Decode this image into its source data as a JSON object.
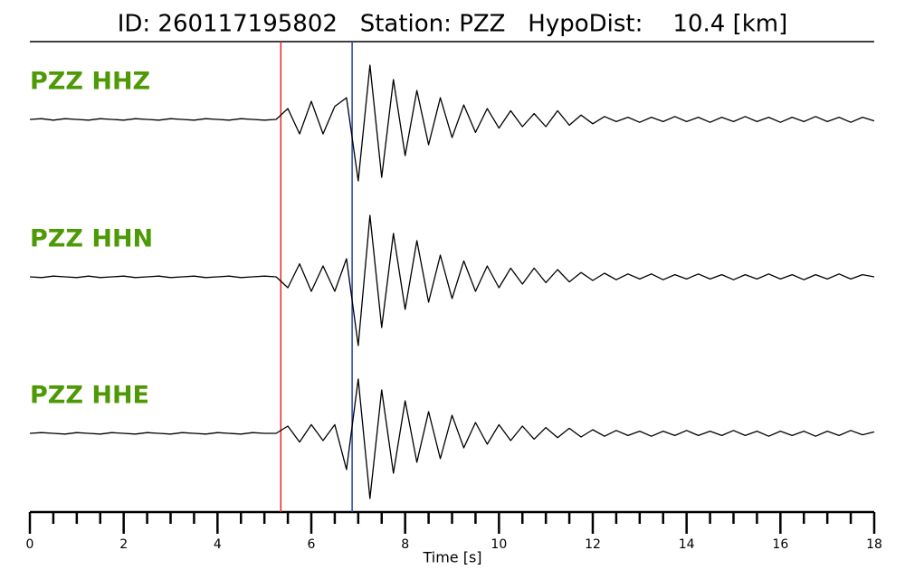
{
  "chart_data": {
    "type": "seismogram",
    "title": "ID: 260117195802   Station: PZZ   HypoDist:    10.4 [km]",
    "xlabel": "Time [s]",
    "xlim": [
      0,
      18
    ],
    "xticks": [
      0,
      2,
      4,
      6,
      8,
      10,
      12,
      14,
      16,
      18
    ],
    "xminorticks": [
      0.5,
      1,
      1.5,
      2.5,
      3,
      3.5,
      4.5,
      5,
      5.5,
      6.5,
      7,
      7.5,
      8.5,
      9,
      9.5,
      10.5,
      11,
      11.5,
      12.5,
      13,
      13.5,
      14.5,
      15,
      15.5,
      16.5,
      17,
      17.5
    ],
    "label_color": "#4e9a06",
    "markers": [
      {
        "value": 5.35,
        "color": "#e8262a"
      },
      {
        "value": 6.87,
        "color": "#2a3fb0"
      }
    ],
    "x": [
      0,
      0.25,
      0.5,
      0.75,
      1,
      1.25,
      1.5,
      1.75,
      2,
      2.25,
      2.5,
      2.75,
      3,
      3.25,
      3.5,
      3.75,
      4,
      4.25,
      4.5,
      4.75,
      5,
      5.25,
      5.5,
      5.75,
      6,
      6.25,
      6.5,
      6.75,
      7,
      7.25,
      7.5,
      7.75,
      8,
      8.25,
      8.5,
      8.75,
      9,
      9.25,
      9.5,
      9.75,
      10,
      10.25,
      10.5,
      10.75,
      11,
      11.25,
      11.5,
      11.75,
      12,
      12.25,
      12.5,
      12.75,
      13,
      13.25,
      13.5,
      13.75,
      14,
      14.25,
      14.5,
      14.75,
      15,
      15.25,
      15.5,
      15.75,
      16,
      16.25,
      16.5,
      16.75,
      17,
      17.25,
      17.5,
      17.75,
      18
    ],
    "series": [
      {
        "name": "PZZ HHZ",
        "color": "#000000",
        "values": [
          0,
          0.01,
          -0.01,
          0.01,
          0,
          -0.01,
          0.01,
          0,
          -0.01,
          0.01,
          0,
          -0.01,
          0.01,
          0,
          -0.01,
          0.01,
          0,
          -0.01,
          0.01,
          0,
          -0.01,
          0,
          0.15,
          -0.2,
          0.25,
          -0.2,
          0.18,
          0.3,
          -0.85,
          0.75,
          -0.8,
          0.55,
          -0.5,
          0.4,
          -0.35,
          0.3,
          -0.25,
          0.2,
          -0.18,
          0.15,
          -0.12,
          0.12,
          -0.1,
          0.08,
          -0.1,
          0.12,
          -0.08,
          0.06,
          -0.06,
          0.04,
          -0.03,
          0.03,
          -0.04,
          0.03,
          -0.03,
          0.04,
          -0.03,
          0.03,
          -0.04,
          0.03,
          -0.03,
          0.04,
          -0.03,
          0.03,
          -0.04,
          0.03,
          -0.03,
          0.04,
          -0.03,
          0.03,
          -0.04,
          0.03,
          -0.02
        ]
      },
      {
        "name": "PZZ HHN",
        "color": "#000000",
        "values": [
          0,
          -0.01,
          0.01,
          0,
          -0.01,
          0.01,
          -0.01,
          0,
          0.01,
          -0.01,
          0,
          0.01,
          -0.01,
          0,
          0.01,
          -0.01,
          0,
          0.01,
          -0.01,
          0,
          0.01,
          0,
          -0.15,
          0.18,
          -0.2,
          0.15,
          -0.2,
          0.25,
          -0.95,
          0.85,
          -0.7,
          0.6,
          -0.45,
          0.5,
          -0.35,
          0.3,
          -0.3,
          0.22,
          -0.2,
          0.15,
          -0.15,
          0.12,
          -0.1,
          0.12,
          -0.08,
          0.1,
          -0.07,
          0.06,
          -0.05,
          0.05,
          -0.04,
          0.04,
          -0.03,
          0.04,
          -0.04,
          0.03,
          -0.03,
          0.04,
          -0.03,
          0.03,
          -0.04,
          0.03,
          -0.03,
          0.04,
          -0.03,
          0.03,
          -0.04,
          0.03,
          -0.03,
          0.04,
          -0.03,
          0.03,
          0
        ]
      },
      {
        "name": "PZZ HHE",
        "color": "#000000",
        "values": [
          0,
          0.01,
          0,
          -0.01,
          0.01,
          0,
          -0.01,
          0.01,
          0,
          -0.01,
          0.01,
          0,
          -0.01,
          0.01,
          0,
          -0.01,
          0.01,
          0,
          -0.01,
          0.01,
          0,
          0,
          0.1,
          -0.12,
          0.12,
          -0.1,
          0.12,
          -0.5,
          0.75,
          -0.9,
          0.6,
          -0.55,
          0.45,
          -0.4,
          0.3,
          -0.35,
          0.25,
          -0.2,
          0.15,
          -0.15,
          0.12,
          -0.1,
          0.1,
          -0.08,
          0.08,
          -0.06,
          0.07,
          -0.05,
          0.05,
          -0.04,
          0.04,
          -0.03,
          0.03,
          -0.04,
          0.03,
          -0.03,
          0.04,
          -0.03,
          0.03,
          -0.03,
          0.04,
          -0.03,
          0.03,
          -0.04,
          0.03,
          -0.03,
          0.03,
          -0.04,
          0.03,
          -0.03,
          0.04,
          -0.02,
          0.02
        ]
      }
    ]
  }
}
